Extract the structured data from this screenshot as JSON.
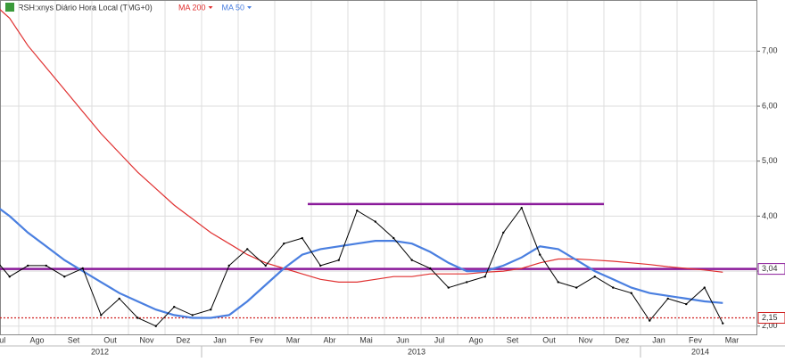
{
  "chart_data": {
    "type": "stock",
    "title": "RSH:xnys Diário Hora Local (TMG+0)",
    "categories": [
      "Jul",
      null,
      "Ago",
      null,
      "Set",
      null,
      "Out",
      null,
      "Nov",
      null,
      "Dez",
      null,
      "Jan",
      null,
      "Fev",
      null,
      "Mar",
      null,
      "Abr",
      null,
      "Mai",
      null,
      "Jun",
      null,
      "Jul",
      null,
      "Ago",
      null,
      "Set",
      null,
      "Out",
      null,
      "Nov",
      null,
      "Dez",
      null,
      "Jan",
      null,
      "Fev",
      null,
      "Mar",
      null
    ],
    "years": [
      "2012",
      "2013",
      "2014"
    ],
    "price": {
      "color": "#000000",
      "values": [
        3.3,
        2.9,
        3.1,
        3.1,
        2.9,
        3.05,
        2.2,
        2.5,
        2.15,
        2.0,
        2.35,
        2.2,
        2.3,
        3.1,
        3.4,
        3.1,
        3.5,
        3.6,
        3.1,
        3.2,
        4.1,
        3.9,
        3.6,
        3.2,
        3.05,
        2.7,
        2.8,
        2.9,
        3.7,
        4.15,
        3.3,
        2.8,
        2.7,
        2.9,
        2.7,
        2.6,
        2.1,
        2.5,
        2.4,
        2.7,
        2.05,
        null
      ]
    },
    "series": [
      {
        "name": "MA 200",
        "color": "#e03030",
        "values": [
          7.9,
          7.6,
          7.1,
          6.7,
          6.3,
          5.9,
          5.5,
          5.15,
          4.8,
          4.5,
          4.2,
          3.95,
          3.7,
          3.5,
          3.3,
          3.15,
          3.05,
          2.95,
          2.85,
          2.8,
          2.8,
          2.85,
          2.9,
          2.9,
          2.95,
          2.95,
          2.95,
          2.98,
          3.0,
          3.05,
          3.15,
          3.22,
          3.22,
          3.2,
          3.18,
          3.15,
          3.12,
          3.08,
          3.05,
          3.02,
          2.98,
          null
        ]
      },
      {
        "name": "MA 50",
        "color": "#4a7fe0",
        "values": [
          4.25,
          4.0,
          3.7,
          3.45,
          3.2,
          3.0,
          2.8,
          2.6,
          2.45,
          2.3,
          2.2,
          2.15,
          2.15,
          2.2,
          2.45,
          2.75,
          3.05,
          3.3,
          3.4,
          3.45,
          3.5,
          3.55,
          3.55,
          3.5,
          3.35,
          3.15,
          3.0,
          3.0,
          3.1,
          3.25,
          3.45,
          3.4,
          3.2,
          3.0,
          2.85,
          2.7,
          2.6,
          2.55,
          2.5,
          2.45,
          2.42,
          null
        ]
      }
    ],
    "levels": [
      {
        "value": 4.22,
        "color": "#8a1a9a"
      },
      {
        "value": 3.04,
        "color": "#8a1a9a",
        "label": "3,04"
      },
      {
        "value": 2.15,
        "color": "#d02020",
        "label": "2,15",
        "dotted": true
      }
    ],
    "ylim": [
      1.85,
      7.93
    ],
    "yticks": [
      {
        "value": 2,
        "label": "2,00"
      },
      {
        "value": 3,
        "label": "3,00"
      },
      {
        "value": 4,
        "label": "4,00"
      },
      {
        "value": 5,
        "label": "5,00"
      },
      {
        "value": 6,
        "label": "6,00"
      },
      {
        "value": 7,
        "label": "7,00"
      }
    ],
    "grid": true
  }
}
